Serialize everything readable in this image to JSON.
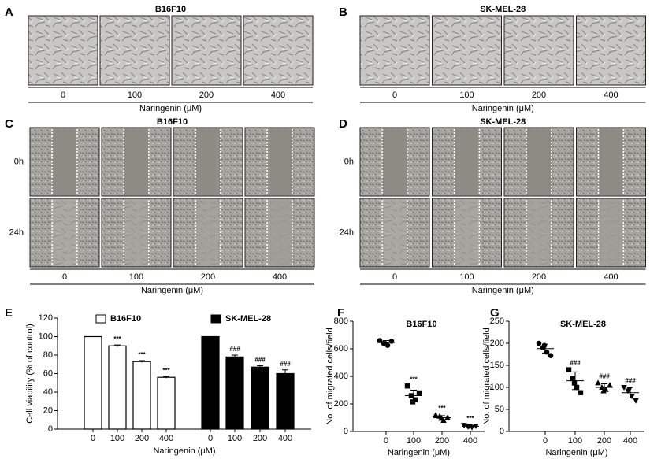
{
  "panels": [
    {
      "label": "A",
      "title": "B16F10",
      "ticks": [
        "0",
        "100",
        "200",
        "400"
      ],
      "xlabel": "Naringenin (μM)"
    },
    {
      "label": "B",
      "title": "SK-MEL-28",
      "ticks": [
        "0",
        "100",
        "200",
        "400"
      ],
      "xlabel": "Naringenin (μM)"
    },
    {
      "label": "C",
      "title": "B16F10",
      "rows": [
        "0h",
        "24h"
      ],
      "ticks": [
        "0",
        "100",
        "200",
        "400"
      ],
      "xlabel": "Naringenin (μM)"
    },
    {
      "label": "D",
      "title": "SK-MEL-28",
      "rows": [
        "0h",
        "24h"
      ],
      "ticks": [
        "0",
        "100",
        "200",
        "400"
      ],
      "xlabel": "Naringenin (μM)"
    }
  ],
  "chart_data": [
    {
      "type": "bar",
      "label": "E",
      "ylabel": "Cell viability (% of control)",
      "xlabel": "Naringenin (μM)",
      "categories": [
        "0",
        "100",
        "200",
        "400"
      ],
      "ylim": [
        0,
        120
      ],
      "yticks": [
        0,
        20,
        40,
        60,
        80,
        100,
        120
      ],
      "series": [
        {
          "name": "B16F10",
          "color": "#ffffff",
          "values": [
            100,
            90,
            73,
            56
          ],
          "errors": [
            0,
            1,
            1,
            1
          ],
          "markers": [
            null,
            "***",
            "***",
            "***"
          ]
        },
        {
          "name": "SK-MEL-28",
          "color": "#000000",
          "values": [
            100,
            78,
            67,
            60
          ],
          "errors": [
            0,
            2,
            1.5,
            4
          ],
          "markers": [
            null,
            "###",
            "###",
            "###"
          ]
        }
      ]
    },
    {
      "type": "scatter",
      "label": "F",
      "title": "B16F10",
      "ylabel": "No. of migrated cells/field",
      "xlabel": "Naringenin (μM)",
      "categories": [
        "0",
        "100",
        "200",
        "400"
      ],
      "ylim": [
        0,
        800
      ],
      "yticks": [
        0,
        200,
        400,
        600,
        800
      ],
      "shapes": [
        "circle",
        "square",
        "triangle",
        "triangle-down"
      ],
      "color": "#000000",
      "values": [
        [
          660,
          640,
          625,
          655,
          635
        ],
        [
          330,
          260,
          230,
          280,
          215
        ],
        [
          120,
          110,
          80,
          100,
          95
        ],
        [
          45,
          35,
          30,
          40,
          38
        ]
      ],
      "means": [
        645,
        260,
        100,
        38
      ],
      "errors": [
        15,
        40,
        15,
        6
      ],
      "markers": [
        null,
        "***",
        "***",
        "***"
      ]
    },
    {
      "type": "scatter",
      "label": "G",
      "title": "SK-MEL-28",
      "ylabel": "No. of migrated cells/field",
      "xlabel": "Naringenin (μM)",
      "categories": [
        "0",
        "100",
        "200",
        "400"
      ],
      "ylim": [
        0,
        250
      ],
      "yticks": [
        0,
        50,
        100,
        150,
        200,
        250
      ],
      "shapes": [
        "circle",
        "square",
        "triangle",
        "triangle-down"
      ],
      "color": "#000000",
      "values": [
        [
          200,
          190,
          180,
          172,
          195
        ],
        [
          140,
          120,
          100,
          88,
          110
        ],
        [
          110,
          100,
          95,
          105,
          92
        ],
        [
          100,
          92,
          80,
          70,
          96
        ]
      ],
      "means": [
        188,
        115,
        100,
        88
      ],
      "errors": [
        10,
        20,
        8,
        12
      ],
      "markers": [
        null,
        "###",
        "###",
        "###"
      ]
    }
  ]
}
